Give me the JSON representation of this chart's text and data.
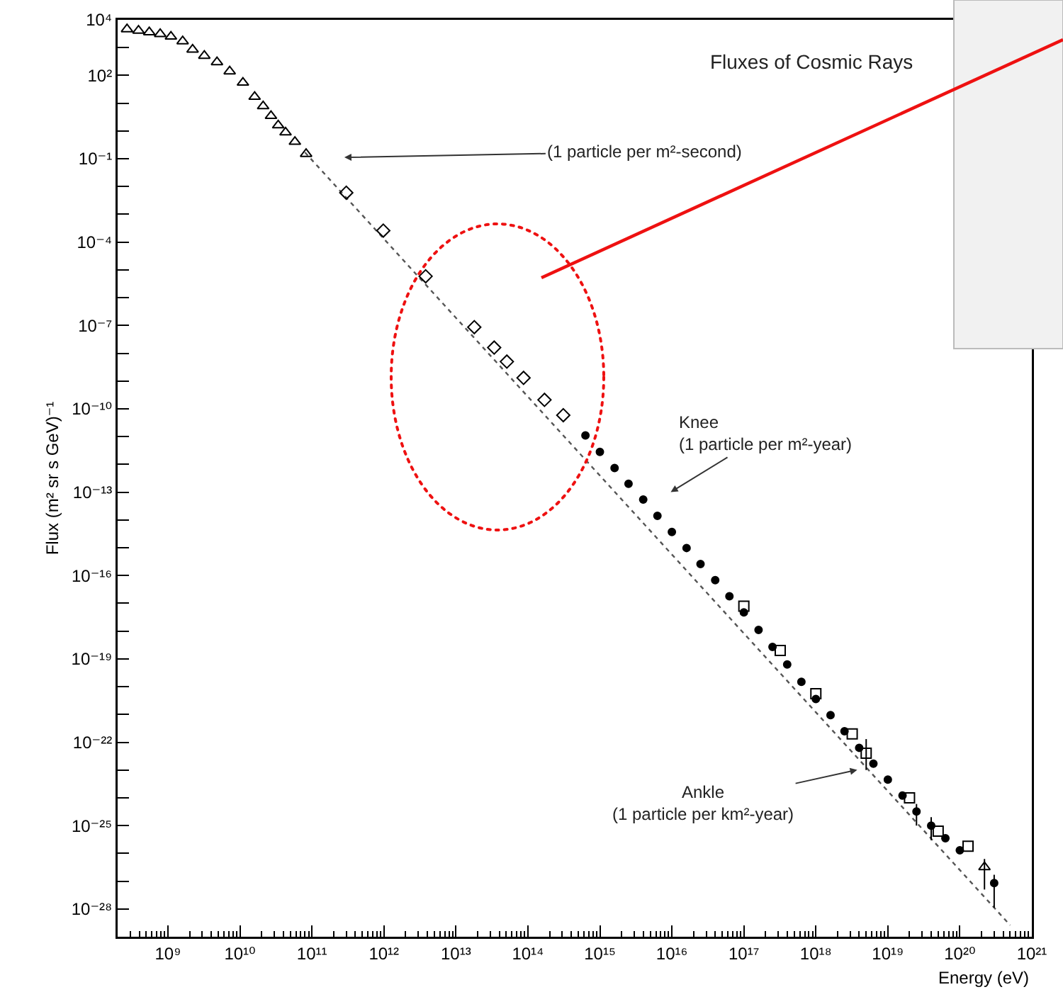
{
  "chart_data": {
    "type": "scatter",
    "title": "Fluxes of Cosmic Rays",
    "xlabel": "Energy (eV)",
    "ylabel": "Flux (m² sr s GeV)⁻¹",
    "log": "xy",
    "grid": false,
    "xlim": [
      200000000.0,
      1e+21
    ],
    "xticks": [
      {
        "value": 1000000000.0,
        "label": "10⁹"
      },
      {
        "value": 10000000000.0,
        "label": "10¹⁰"
      },
      {
        "value": 100000000000.0,
        "label": "10¹¹"
      },
      {
        "value": 1000000000000.0,
        "label": "10¹²"
      },
      {
        "value": 10000000000000.0,
        "label": "10¹³"
      },
      {
        "value": 100000000000000.0,
        "label": "10¹⁴"
      },
      {
        "value": 1000000000000000.0,
        "label": "10¹⁵"
      },
      {
        "value": 1e+16,
        "label": "10¹⁶"
      },
      {
        "value": 1e+17,
        "label": "10¹⁷"
      },
      {
        "value": 1e+18,
        "label": "10¹⁸"
      },
      {
        "value": 1e+19,
        "label": "10¹⁹"
      },
      {
        "value": 1e+20,
        "label": "10²⁰"
      },
      {
        "value": 1e+21,
        "label": "10²¹"
      }
    ],
    "ylim": [
      1e-29,
      10000.0
    ],
    "yticks": [
      {
        "value": 10000.0,
        "label": "10⁴"
      },
      {
        "value": 100.0,
        "label": "10²"
      },
      {
        "value": 0.1,
        "label": "10⁻¹"
      },
      {
        "value": 0.0001,
        "label": "10⁻⁴"
      },
      {
        "value": 1e-07,
        "label": "10⁻⁷"
      },
      {
        "value": 1e-10,
        "label": "10⁻¹⁰"
      },
      {
        "value": 1e-13,
        "label": "10⁻¹³"
      },
      {
        "value": 1e-16,
        "label": "10⁻¹⁶"
      },
      {
        "value": 1e-19,
        "label": "10⁻¹⁹"
      },
      {
        "value": 1e-22,
        "label": "10⁻²²"
      },
      {
        "value": 1e-25,
        "label": "10⁻²⁵"
      },
      {
        "value": 1e-28,
        "label": "10⁻²⁸"
      }
    ],
    "series": [
      {
        "marker": "triangle",
        "color": "#000000",
        "x": [
          270000000.0,
          390000000.0,
          550000000.0,
          780000000.0,
          1100000000.0,
          1600000000.0,
          2200000000.0,
          3200000000.0,
          4800000000.0,
          7200000000.0,
          11000000000.0,
          16000000000.0,
          21000000000.0,
          27000000000.0,
          34000000000.0,
          43000000000.0,
          58000000000.0,
          83000000000.0,
          2.2e+20
        ],
        "values": [
          4600,
          4100,
          3600,
          3100,
          2500,
          1700,
          850,
          510,
          300,
          140,
          55,
          17,
          7.8,
          3.5,
          1.6,
          0.89,
          0.41,
          0.15,
          3.2e-27
        ],
        "errors": [
          null,
          null,
          null,
          null,
          null,
          null,
          null,
          null,
          null,
          null,
          null,
          null,
          null,
          null,
          null,
          null,
          null,
          null,
          [
            5e-28,
            6.3e-27
          ]
        ]
      },
      {
        "marker": "diamond",
        "color": "#000000",
        "x": [
          300000000000.0,
          980000000000.0,
          3800000000000.0,
          18000000000000.0,
          34000000000000.0,
          51000000000000.0,
          87000000000000.0,
          170000000000000.0,
          310000000000000.0
        ],
        "values": [
          0.006,
          0.00026,
          5.9e-06,
          8.7e-08,
          1.6e-08,
          5e-09,
          1.3e-09,
          2.1e-10,
          5.9e-11
        ]
      },
      {
        "marker": "circle",
        "color": "#000000",
        "x": [
          630000000000000.0,
          1000000000000000.0,
          1600000000000000.0,
          2500000000000000.0,
          4000000000000000.0,
          6300000000000000.0,
          1e+16,
          1.6e+16,
          2.5e+16,
          4e+16,
          6.3e+16,
          1e+17,
          1.6e+17,
          2.5e+17,
          4e+17,
          6.3e+17,
          1e+18,
          1.6e+18,
          2.5e+18,
          4e+18,
          6.3e+18,
          1e+19,
          1.6e+19,
          2.5e+19,
          4e+19,
          6.3e+19,
          1e+20,
          3e+20
        ],
        "values": [
          1.1e-11,
          2.8e-12,
          7.4e-13,
          2e-13,
          5.4e-14,
          1.4e-14,
          3.7e-15,
          9.8e-16,
          2.6e-16,
          6.8e-17,
          1.8e-17,
          4.7e-18,
          1.1e-18,
          2.7e-19,
          6.3e-20,
          1.5e-20,
          3.6e-21,
          9.5e-22,
          2.5e-22,
          6.3e-23,
          1.7e-23,
          4.5e-24,
          1.2e-24,
          3.2e-25,
          1e-25,
          3.5e-26,
          1.3e-26,
          8.5e-28
        ],
        "errors": [
          null,
          null,
          null,
          null,
          null,
          null,
          null,
          null,
          null,
          null,
          null,
          null,
          null,
          null,
          null,
          null,
          null,
          null,
          null,
          null,
          null,
          null,
          null,
          [
            1e-25,
            6e-25
          ],
          [
            3e-26,
            2e-25
          ],
          null,
          null,
          [
            1.1e-28,
            1.7e-27
          ]
        ]
      },
      {
        "marker": "square",
        "color": "#000000",
        "x": [
          1e+17,
          3.2e+17,
          1e+18,
          3.2e+18,
          5e+18,
          2e+19,
          5e+19,
          1.3e+20
        ],
        "values": [
          7.9e-18,
          2e-19,
          5.6e-21,
          2e-22,
          4e-23,
          1e-24,
          6.3e-26,
          1.8e-26
        ],
        "errors": [
          null,
          null,
          null,
          null,
          [
            1e-23,
            1.3e-22
          ],
          null,
          null,
          null
        ]
      },
      {
        "type": "line",
        "line_style": "dotted",
        "color": "#555555",
        "x": [
          80000000000.0,
          5e+20
        ],
        "values": [
          0.17,
          2.6e-29
        ]
      }
    ],
    "annotations": [
      "(1 particle per m²-second)",
      "Knee\n(1 particle per m²-year)",
      "Ankle\n(1 particle per km²-year)"
    ]
  }
}
